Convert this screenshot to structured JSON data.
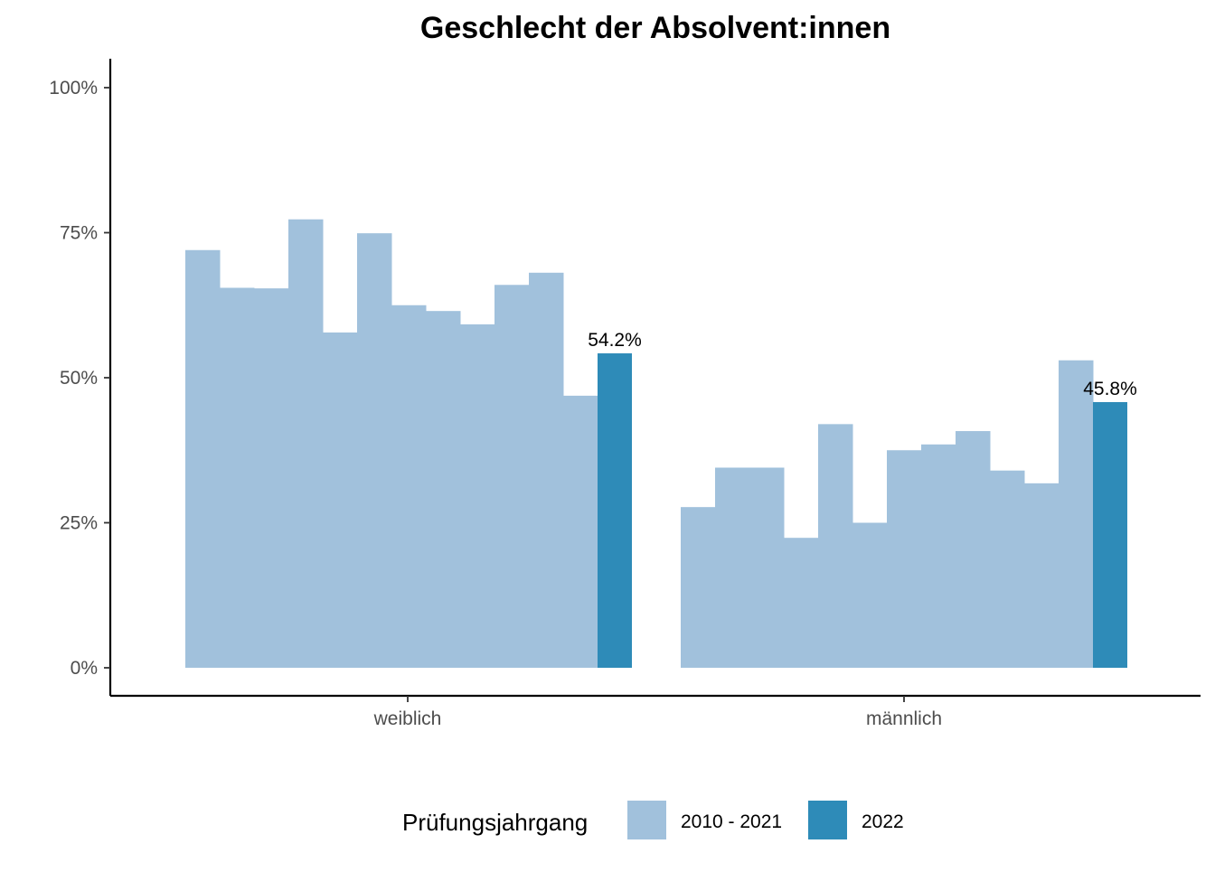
{
  "chart_data": {
    "type": "bar",
    "title": "Geschlecht der Absolvent:innen",
    "xlabel": "",
    "ylabel": "",
    "ylim": [
      0,
      1
    ],
    "y_tick_values": [
      0,
      0.25,
      0.5,
      0.75,
      1.0
    ],
    "y_tick_labels": [
      "0%",
      "25%",
      "50%",
      "75%",
      "100%"
    ],
    "categories": [
      "weiblich",
      "männlich"
    ],
    "grid": false,
    "legend": {
      "title": "Prüfungsjahrgang",
      "position": "bottom",
      "entries": [
        {
          "label": "2010 - 2021",
          "color": "#a1c1dc"
        },
        {
          "label": "2022",
          "color": "#2e8bb8"
        }
      ]
    },
    "series": [
      {
        "name": "2010 - 2021",
        "color": "#a1c1dc",
        "values": [
          [
            0.72,
            0.655,
            0.654,
            0.773,
            0.578,
            0.749,
            0.625,
            0.615,
            0.592,
            0.66,
            0.681,
            0.469
          ],
          [
            0.277,
            0.345,
            0.345,
            0.224,
            0.42,
            0.25,
            0.375,
            0.385,
            0.408,
            0.34,
            0.318,
            0.53
          ]
        ]
      },
      {
        "name": "2022",
        "color": "#2e8bb8",
        "values": [
          0.542,
          0.458
        ],
        "data_labels": [
          "54.2%",
          "45.8%"
        ]
      }
    ]
  }
}
